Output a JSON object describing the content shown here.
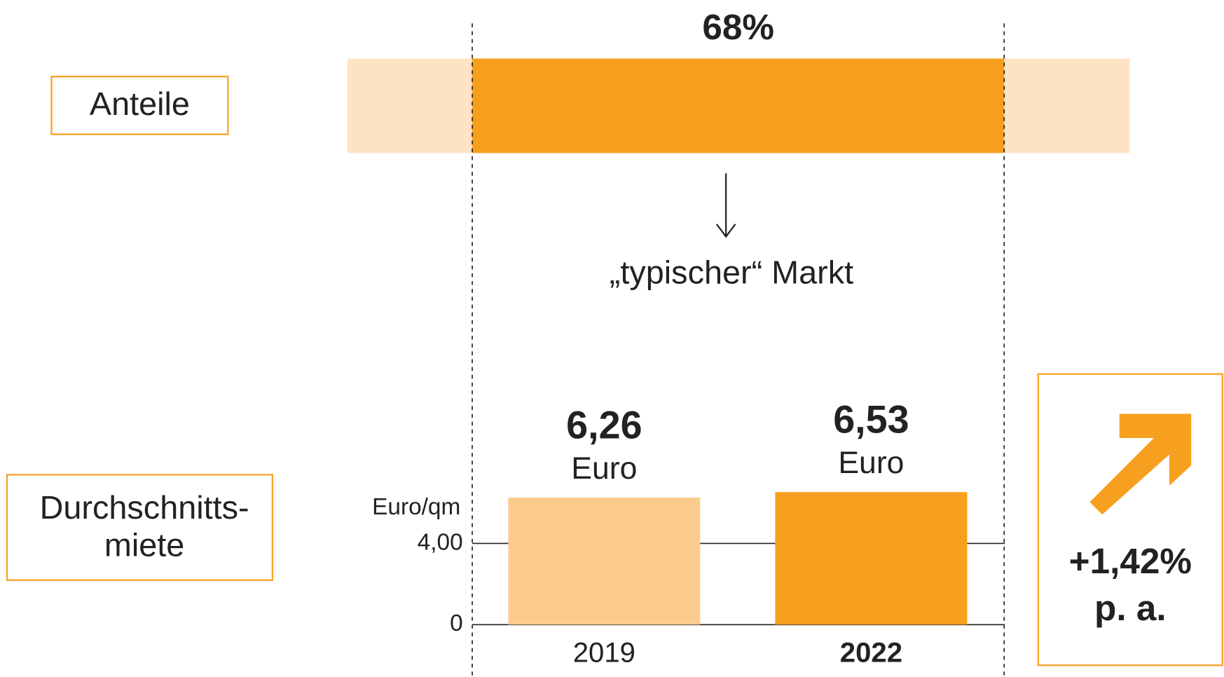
{
  "chart_data": [
    {
      "type": "share",
      "label": "Anteile",
      "values": [
        68
      ],
      "value_labels": [
        "68%"
      ],
      "xlim": [
        0,
        100
      ],
      "color": "#f7a01f",
      "background_color": "#fde3c3",
      "annotation": "„typischer“ Markt"
    },
    {
      "type": "bar",
      "label_lines": [
        "Durchschnitts-",
        "miete"
      ],
      "ylabel": "Euro/qm",
      "categories": [
        "2019",
        "2022"
      ],
      "values": [
        6.26,
        6.53
      ],
      "value_labels": [
        "6,26",
        "6,53"
      ],
      "unit": "Euro",
      "colors": [
        "#fbcb8e",
        "#f7a01f"
      ],
      "highlight_index": 1,
      "ylim": [
        0,
        7
      ],
      "yticks": [
        0,
        {
          "value": 4,
          "label": "4,00"
        }
      ],
      "grid": true,
      "annotation_lines": [
        "+1,42%",
        "p. a."
      ],
      "annotation_color": "#f7a01f"
    }
  ]
}
